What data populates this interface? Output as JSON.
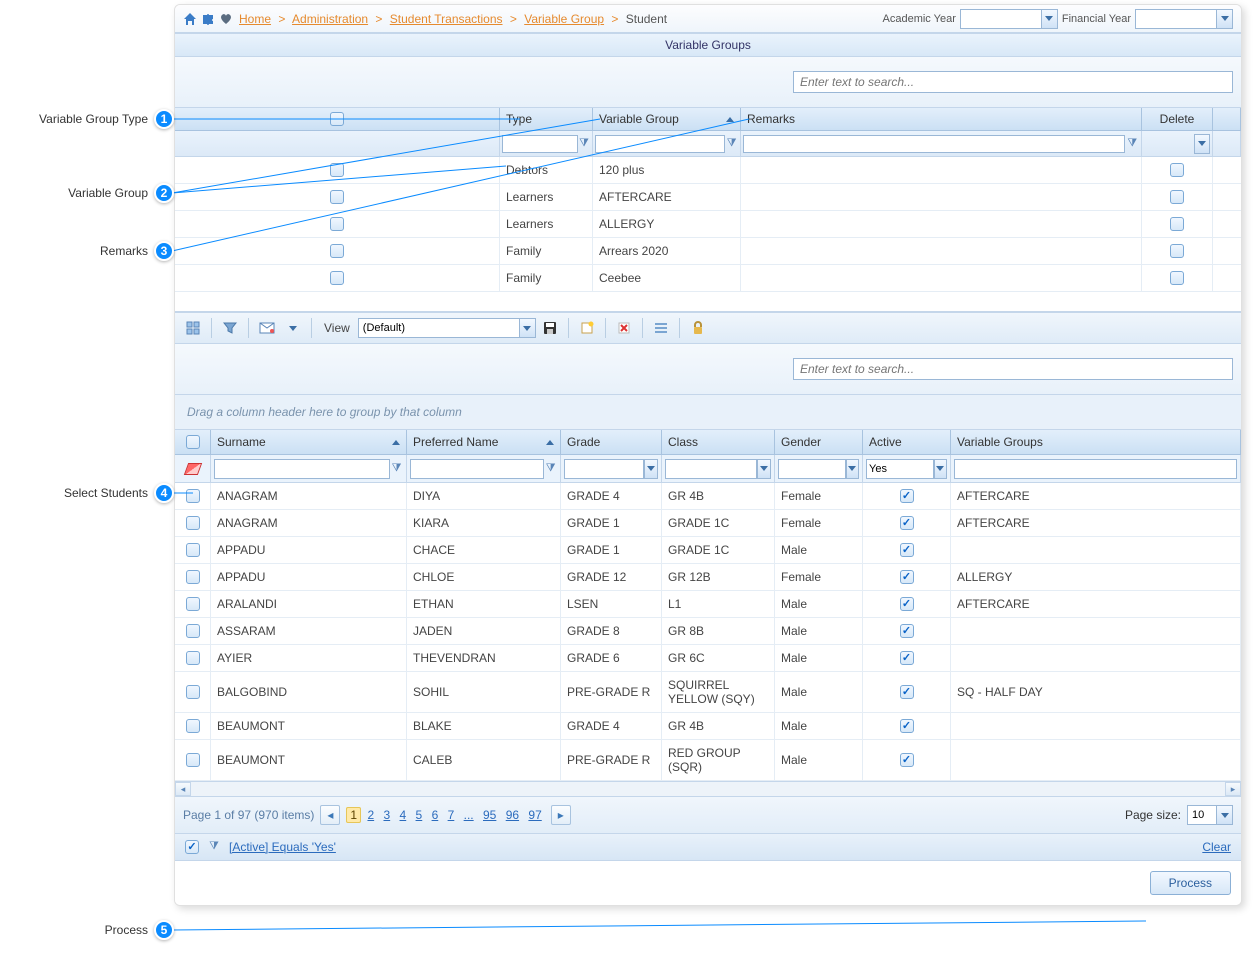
{
  "breadcrumb": {
    "home": "Home",
    "admin": "Administration",
    "st": "Student Transactions",
    "vg": "Variable Group",
    "cur": "Student"
  },
  "top": {
    "ayear": "Academic Year",
    "fyear": "Financial Year"
  },
  "panel_title": "Variable Groups",
  "search_ph": "Enter text to search...",
  "vg_cols": {
    "type": "Type",
    "vg": "Variable Group",
    "rem": "Remarks",
    "del": "Delete"
  },
  "vg_rows": [
    {
      "type": "Debtors",
      "vg": "120 plus",
      "rem": ""
    },
    {
      "type": "Learners",
      "vg": "AFTERCARE",
      "rem": ""
    },
    {
      "type": "Learners",
      "vg": "ALLERGY",
      "rem": ""
    },
    {
      "type": "Family",
      "vg": "Arrears 2020",
      "rem": ""
    },
    {
      "type": "Family",
      "vg": "Ceebee",
      "rem": ""
    }
  ],
  "view_label": "View",
  "view_val": "(Default)",
  "groupbar": "Drag a column header here to group by that column",
  "st_cols": {
    "sur": "Surname",
    "pre": "Preferred Name",
    "gra": "Grade",
    "cla": "Class",
    "gen": "Gender",
    "act": "Active",
    "vgs": "Variable Groups"
  },
  "active_filter": "Yes",
  "st_rows": [
    {
      "sur": "ANAGRAM",
      "pre": "DIYA",
      "gra": "GRADE 4",
      "cla": "GR 4B",
      "gen": "Female",
      "vgs": "AFTERCARE"
    },
    {
      "sur": "ANAGRAM",
      "pre": "KIARA",
      "gra": "GRADE 1",
      "cla": "GRADE 1C",
      "gen": "Female",
      "vgs": "AFTERCARE"
    },
    {
      "sur": "APPADU",
      "pre": "CHACE",
      "gra": "GRADE 1",
      "cla": "GRADE 1C",
      "gen": "Male",
      "vgs": ""
    },
    {
      "sur": "APPADU",
      "pre": "CHLOE",
      "gra": "GRADE 12",
      "cla": "GR 12B",
      "gen": "Female",
      "vgs": "ALLERGY"
    },
    {
      "sur": "ARALANDI",
      "pre": "ETHAN",
      "gra": "LSEN",
      "cla": "L1",
      "gen": "Male",
      "vgs": "AFTERCARE"
    },
    {
      "sur": "ASSARAM",
      "pre": "JADEN",
      "gra": "GRADE 8",
      "cla": "GR 8B",
      "gen": "Male",
      "vgs": ""
    },
    {
      "sur": "AYIER",
      "pre": "THEVENDRAN",
      "gra": "GRADE 6",
      "cla": "GR 6C",
      "gen": "Male",
      "vgs": ""
    },
    {
      "sur": "BALGOBIND",
      "pre": "SOHIL",
      "gra": "PRE-GRADE R",
      "cla": "SQUIRREL YELLOW (SQY)",
      "gen": "Male",
      "vgs": "SQ - HALF DAY"
    },
    {
      "sur": "BEAUMONT",
      "pre": "BLAKE",
      "gra": "GRADE 4",
      "cla": "GR 4B",
      "gen": "Male",
      "vgs": ""
    },
    {
      "sur": "BEAUMONT",
      "pre": "CALEB",
      "gra": "PRE-GRADE R",
      "cla": "RED GROUP (SQR)",
      "gen": "Male",
      "vgs": ""
    }
  ],
  "pager": {
    "info": "Page 1 of 97 (970 items)",
    "pages": [
      "1",
      "2",
      "3",
      "4",
      "5",
      "6",
      "7",
      "...",
      "95",
      "96",
      "97"
    ],
    "size_label": "Page size:",
    "size": "10"
  },
  "filter_text": "[Active] Equals 'Yes'",
  "clear": "Clear",
  "process": "Process",
  "callouts": {
    "c1": "Variable Group Type",
    "c2": "Variable Group",
    "c3": "Remarks",
    "c4": "Select Students",
    "c5": "Process"
  }
}
